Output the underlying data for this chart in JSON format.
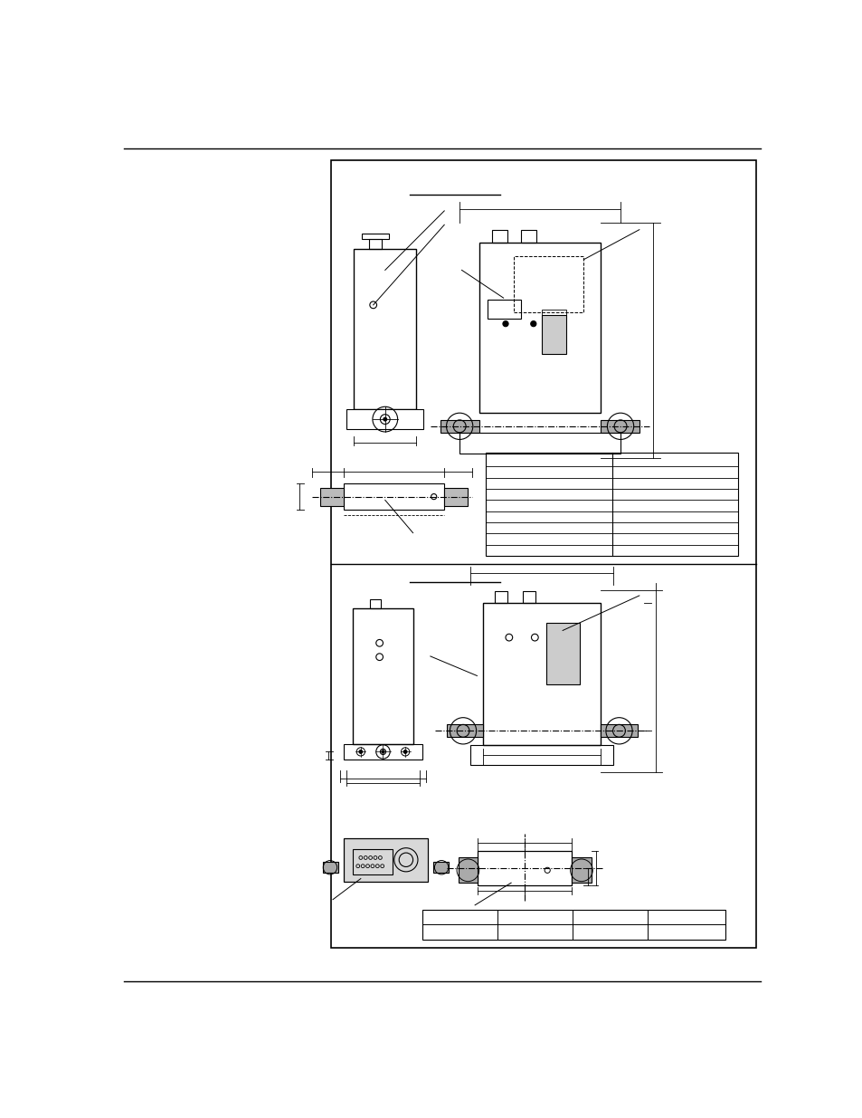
{
  "page_bg": "#ffffff",
  "line_color": "#000000",
  "gray_fill": "#cccccc",
  "light_gray": "#e8e8e8"
}
